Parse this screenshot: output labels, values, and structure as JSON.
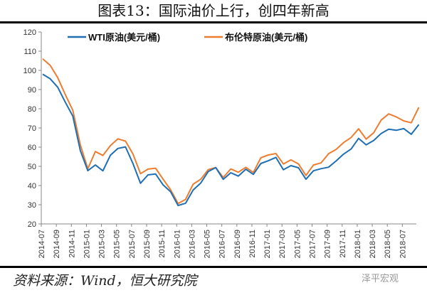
{
  "title": "图表13：国际油价上行，创四年新高",
  "source": "资料来源：Wind，恒大研究院",
  "watermark": "泽平宏观",
  "chart_data": {
    "type": "line",
    "title": "图表13：国际油价上行，创四年新高",
    "xlabel": "",
    "ylabel": "",
    "ylim": [
      20,
      120
    ],
    "yticks": [
      20,
      30,
      40,
      50,
      60,
      70,
      80,
      90,
      100,
      110,
      120
    ],
    "xtick_labels": [
      "2014-07",
      "2014-09",
      "2014-11",
      "2015-01",
      "2015-03",
      "2015-05",
      "2015-07",
      "2015-09",
      "2015-11",
      "2016-01",
      "2016-03",
      "2016-05",
      "2016-07",
      "2016-09",
      "2016-11",
      "2017-01",
      "2017-03",
      "2017-05",
      "2017-07",
      "2017-09",
      "2017-11",
      "2018-01",
      "2018-03",
      "2018-05",
      "2018-07"
    ],
    "legend_position": "top",
    "x": [
      "2014-07",
      "2014-08",
      "2014-09",
      "2014-10",
      "2014-11",
      "2014-12",
      "2015-01",
      "2015-02",
      "2015-03",
      "2015-04",
      "2015-05",
      "2015-06",
      "2015-07",
      "2015-08",
      "2015-09",
      "2015-10",
      "2015-11",
      "2015-12",
      "2016-01",
      "2016-02",
      "2016-03",
      "2016-04",
      "2016-05",
      "2016-06",
      "2016-07",
      "2016-08",
      "2016-09",
      "2016-10",
      "2016-11",
      "2016-12",
      "2017-01",
      "2017-02",
      "2017-03",
      "2017-04",
      "2017-05",
      "2017-06",
      "2017-07",
      "2017-08",
      "2017-09",
      "2017-10",
      "2017-11",
      "2017-12",
      "2018-01",
      "2018-02",
      "2018-03",
      "2018-04",
      "2018-05",
      "2018-06",
      "2018-07",
      "2018-08",
      "2018-09"
    ],
    "series": [
      {
        "name": "WTI原油(美元/桶)",
        "color": "#1f6fb5",
        "values": [
          98,
          95,
          92,
          83,
          76,
          59,
          47,
          51,
          48,
          55,
          60,
          60,
          51,
          42,
          45,
          46,
          41,
          36,
          30,
          31,
          37,
          42,
          47,
          49,
          44,
          46,
          45,
          49,
          45,
          52,
          53,
          54,
          49,
          50,
          49,
          44,
          47,
          49,
          50,
          52,
          57,
          59,
          64,
          62,
          63,
          67,
          70,
          68,
          70,
          67,
          71
        ]
      },
      {
        "name": "布伦特原油(美元/桶)",
        "color": "#ed7d31",
        "values": [
          106,
          102,
          97,
          87,
          79,
          62,
          48,
          58,
          56,
          60,
          65,
          63,
          56,
          47,
          48,
          49,
          44,
          37,
          31,
          33,
          40,
          44,
          48,
          49,
          45,
          48,
          47,
          50,
          46,
          55,
          56,
          56,
          52,
          53,
          51,
          46,
          50,
          52,
          57,
          58,
          63,
          65,
          69,
          65,
          67,
          74,
          78,
          75,
          74,
          73,
          80
        ]
      }
    ]
  }
}
